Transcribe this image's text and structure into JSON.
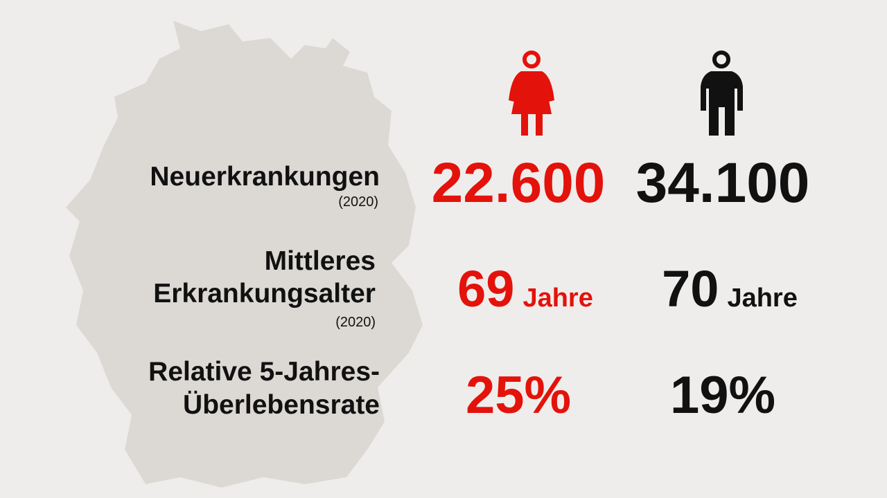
{
  "rows": [
    {
      "label": [
        "Neuerkrankungen"
      ],
      "note": "(2020)",
      "female": {
        "value": "22.600"
      },
      "male": {
        "value": "34.100"
      }
    },
    {
      "label": [
        "Mittleres",
        "Erkrankungsalter"
      ],
      "note": "(2020)",
      "female": {
        "value": "69",
        "unit": "Jahre"
      },
      "male": {
        "value": "70",
        "unit": "Jahre"
      }
    },
    {
      "label": [
        "Relative 5-Jahres-",
        "Überlebensrate"
      ],
      "female": {
        "value": "25%"
      },
      "male": {
        "value": "19%"
      }
    }
  ]
}
